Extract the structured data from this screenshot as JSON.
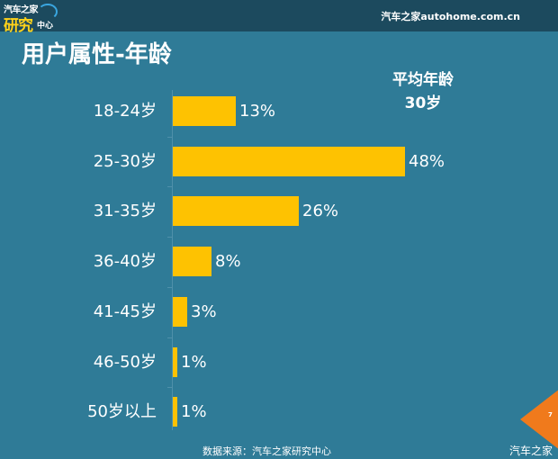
{
  "header": {
    "logo_line1": "汽车之家",
    "logo_line2": "研究",
    "logo_line3": "中心",
    "site": "汽车之家autohome.com.cn"
  },
  "title": "用户属性-年龄",
  "average": {
    "label": "平均年龄",
    "value": "30岁"
  },
  "footer": {
    "source": "数据来源：汽车之家研究中心",
    "watermark": "汽车之家",
    "page_number": "7"
  },
  "colors": {
    "background": "#2f7b97",
    "header": "#1c4a5e",
    "bar": "#fec201",
    "page_marker": "#f07a1c"
  },
  "chart_data": {
    "type": "bar",
    "orientation": "horizontal",
    "title": "用户属性-年龄",
    "categories": [
      "18-24岁",
      "25-30岁",
      "31-35岁",
      "36-40岁",
      "41-45岁",
      "46-50岁",
      "50岁以上"
    ],
    "values": [
      13,
      48,
      26,
      8,
      3,
      1,
      1
    ],
    "value_labels": [
      "13%",
      "48%",
      "26%",
      "8%",
      "3%",
      "1%",
      "1%"
    ],
    "unit": "%",
    "xlabel": "",
    "ylabel": "",
    "xlim": [
      0,
      50
    ],
    "grid": false,
    "legend": null,
    "annotation": "平均年龄 30岁"
  }
}
